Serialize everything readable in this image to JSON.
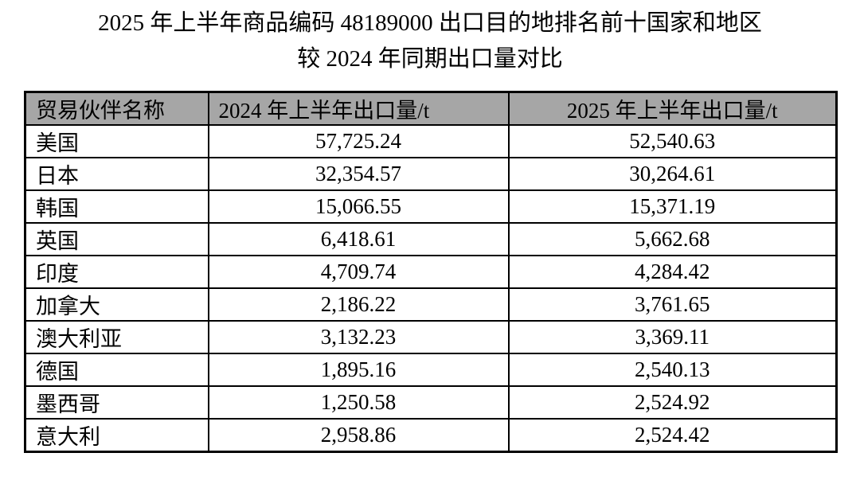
{
  "title": {
    "line1": "2025 年上半年商品编码 48189000 出口目的地排名前十国家和地区",
    "line2": "较 2024 年同期出口量对比"
  },
  "table": {
    "columns": [
      {
        "label": "贸易伙伴名称"
      },
      {
        "label": "2024 年上半年出口量/t"
      },
      {
        "label": "2025 年上半年出口量/t"
      }
    ],
    "rows": [
      {
        "partner": "美国",
        "y2024": "57,725.24",
        "y2025": "52,540.63"
      },
      {
        "partner": "日本",
        "y2024": "32,354.57",
        "y2025": "30,264.61"
      },
      {
        "partner": "韩国",
        "y2024": "15,066.55",
        "y2025": "15,371.19"
      },
      {
        "partner": "英国",
        "y2024": "6,418.61",
        "y2025": "5,662.68"
      },
      {
        "partner": "印度",
        "y2024": "4,709.74",
        "y2025": "4,284.42"
      },
      {
        "partner": "加拿大",
        "y2024": "2,186.22",
        "y2025": "3,761.65"
      },
      {
        "partner": "澳大利亚",
        "y2024": "3,132.23",
        "y2025": "3,369.11"
      },
      {
        "partner": "德国",
        "y2024": "1,895.16",
        "y2025": "2,540.13"
      },
      {
        "partner": "墨西哥",
        "y2024": "1,250.58",
        "y2025": "2,524.92"
      },
      {
        "partner": "意大利",
        "y2024": "2,958.86",
        "y2025": "2,524.42"
      }
    ],
    "colors": {
      "header_bg": "#a6a6a6",
      "border": "#000000"
    }
  }
}
